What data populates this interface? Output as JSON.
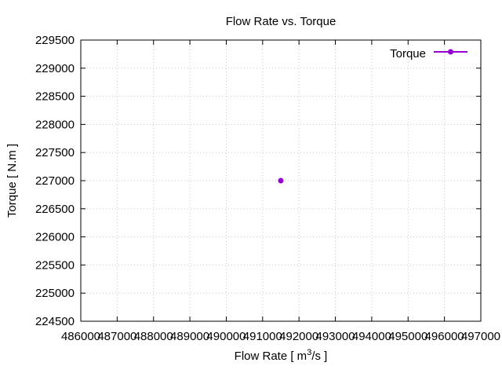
{
  "chart_data": {
    "type": "scatter",
    "title": "Flow Rate vs. Torque",
    "xlabel": "Flow Rate [ m",
    "xlabel_sup": "3",
    "xlabel_tail": "/s ]",
    "ylabel": "Torque [ N.m ]",
    "xlim": [
      486000,
      497000
    ],
    "ylim": [
      224500,
      229500
    ],
    "x_ticks": [
      486000,
      487000,
      488000,
      489000,
      490000,
      491000,
      492000,
      493000,
      494000,
      495000,
      496000,
      497000
    ],
    "y_ticks": [
      224500,
      225000,
      225500,
      226000,
      226500,
      227000,
      227500,
      228000,
      228500,
      229000,
      229500
    ],
    "grid": true,
    "legend_position": "top-right",
    "series": [
      {
        "name": "Torque",
        "color": "#9400d3",
        "points": [
          {
            "x": 491500,
            "y": 227000
          }
        ]
      }
    ]
  }
}
